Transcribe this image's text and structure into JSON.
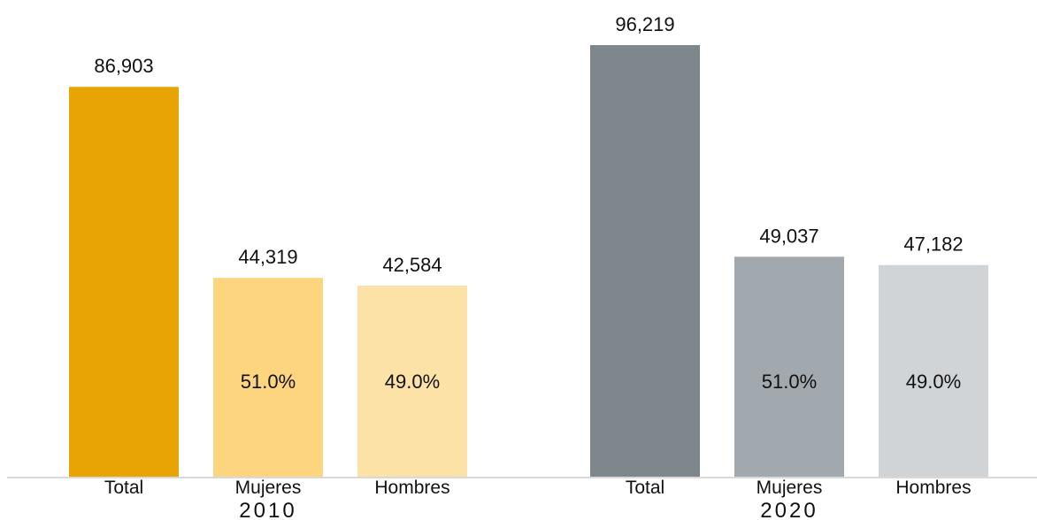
{
  "chart_data": {
    "type": "bar",
    "groups": [
      {
        "year": "2010",
        "bars": [
          {
            "category": "Total",
            "value": 86903,
            "value_label": "86,903",
            "share_label": "",
            "color": "#E8A304"
          },
          {
            "category": "Mujeres",
            "value": 44319,
            "value_label": "44,319",
            "share_label": "51.0%",
            "color": "#FCD57E"
          },
          {
            "category": "Hombres",
            "value": 42584,
            "value_label": "42,584",
            "share_label": "49.0%",
            "color": "#FCE2A6"
          }
        ]
      },
      {
        "year": "2020",
        "bars": [
          {
            "category": "Total",
            "value": 96219,
            "value_label": "96,219",
            "share_label": "",
            "color": "#7D878C"
          },
          {
            "category": "Mujeres",
            "value": 49037,
            "value_label": "49,037",
            "share_label": "51.0%",
            "color": "#A2A9AE"
          },
          {
            "category": "Hombres",
            "value": 47182,
            "value_label": "47,182",
            "share_label": "49.0%",
            "color": "#D0D4D7"
          }
        ]
      }
    ],
    "ylim": [
      0,
      96219
    ],
    "grid": false,
    "legend": "none",
    "axis_color": "#D9D9D9"
  }
}
